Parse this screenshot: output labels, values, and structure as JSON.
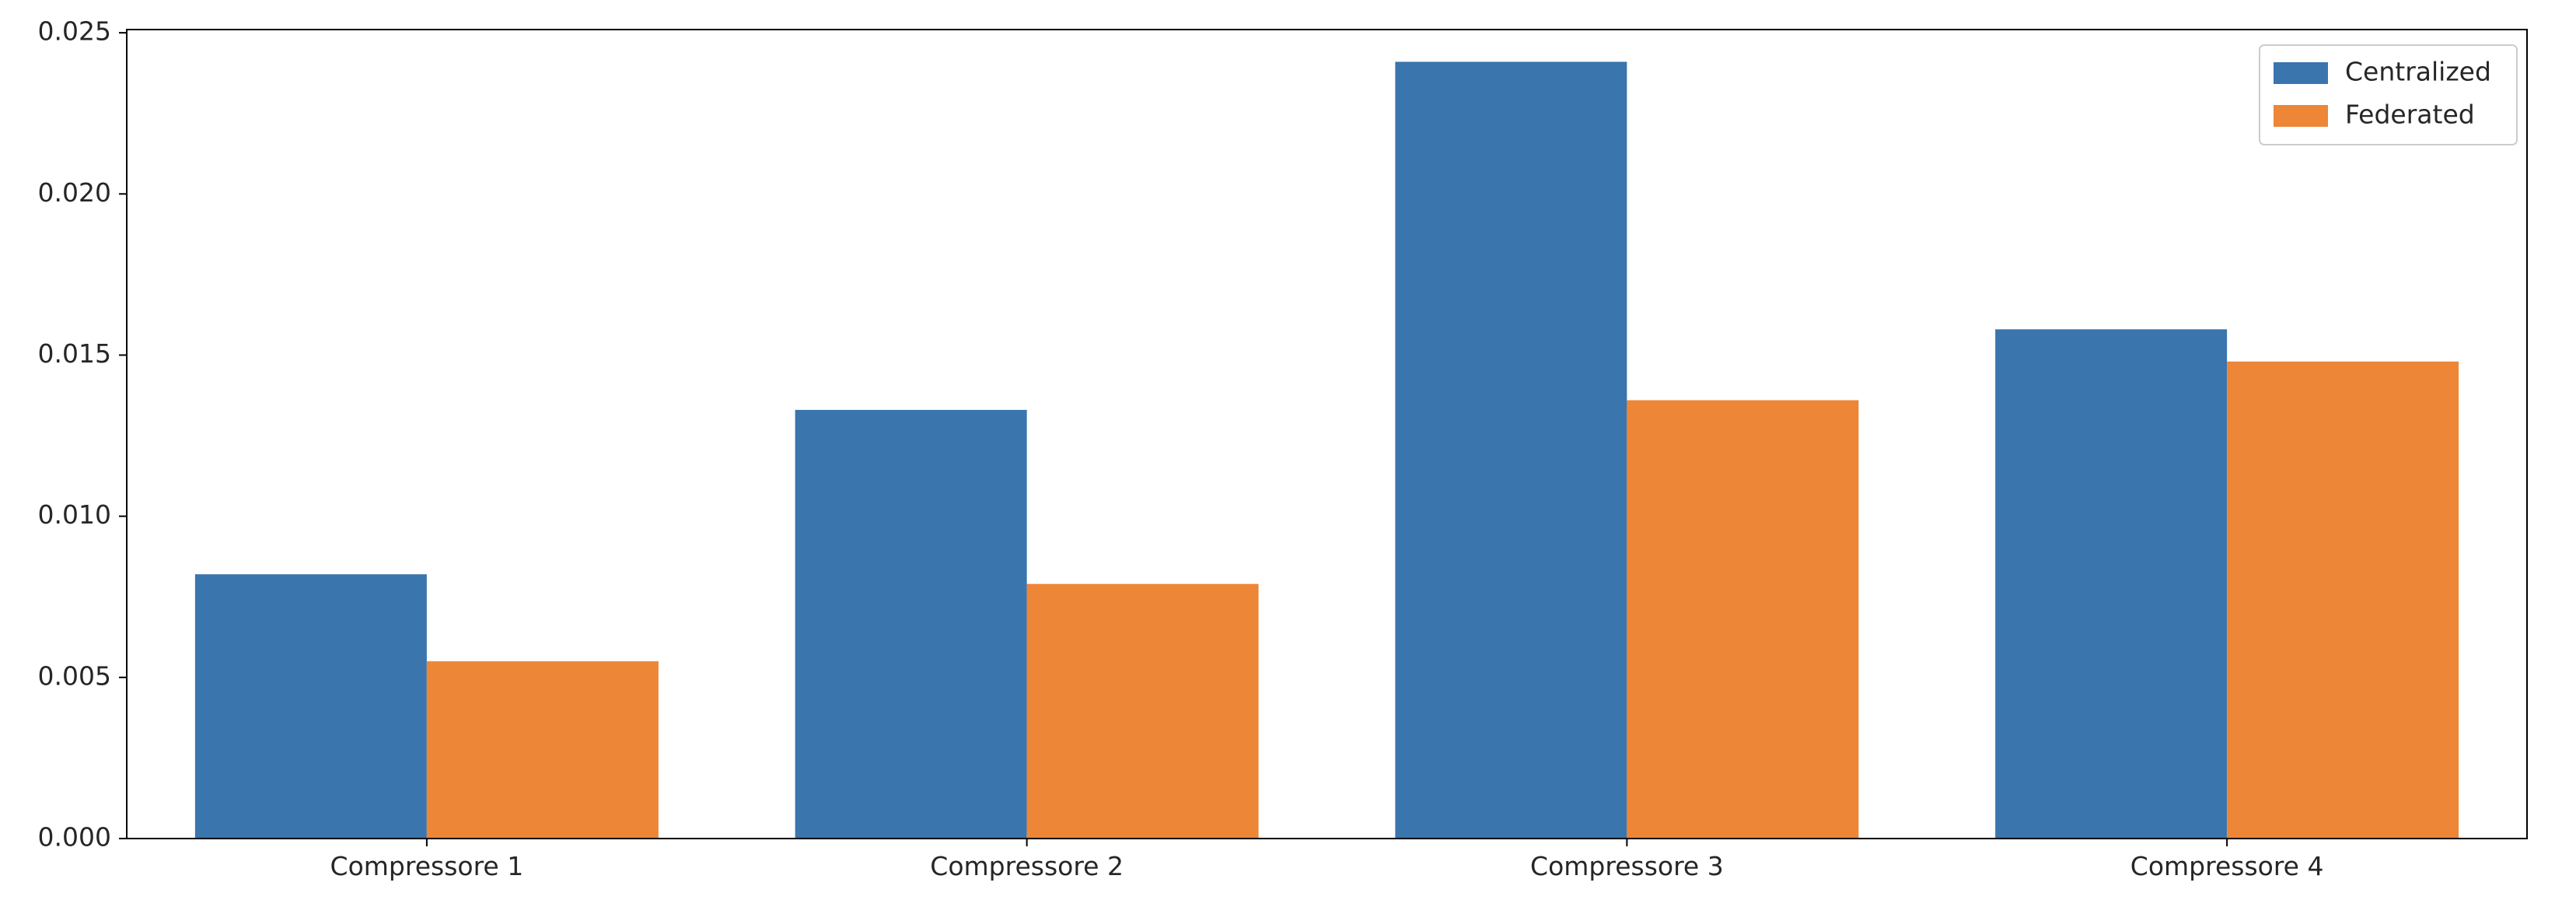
{
  "chart_data": {
    "type": "bar",
    "title": "",
    "xlabel": "",
    "ylabel": "",
    "categories": [
      "Compressore 1",
      "Compressore 2",
      "Compressore 3",
      "Compressore 4"
    ],
    "series": [
      {
        "name": "Centralized",
        "color": "#3a75ae",
        "values": [
          0.0082,
          0.0133,
          0.0241,
          0.0158
        ]
      },
      {
        "name": "Federated",
        "color": "#ed8637",
        "values": [
          0.0055,
          0.0079,
          0.0136,
          0.0148
        ]
      }
    ],
    "ylim": [
      0,
      0.0251
    ],
    "yticks": [
      "0.000",
      "0.005",
      "0.010",
      "0.015",
      "0.020",
      "0.025"
    ],
    "legend_position": "top-right",
    "grid": false
  }
}
